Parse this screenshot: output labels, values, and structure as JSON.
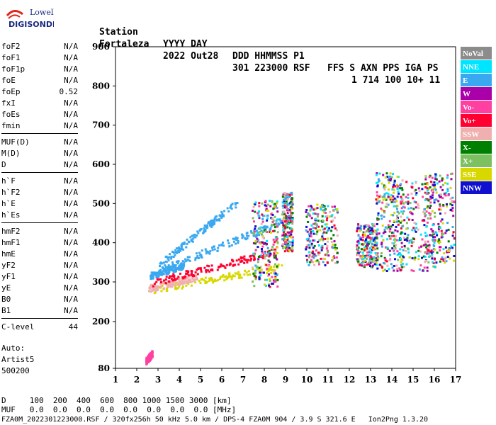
{
  "logo": {
    "line1": "Lowell",
    "line2": "DIGISONDE"
  },
  "header": {
    "row1": [
      "Station",
      "YYYY DAY",
      "DDD HHMMSS P1",
      "FFS S AXN PPS IGA PS"
    ],
    "row2": [
      "Fortaleza",
      "2022 Out28",
      "301 223000 RSF",
      "1 714 100 10+ 11"
    ]
  },
  "params": [
    {
      "name": "foF2",
      "value": "N/A"
    },
    {
      "name": "foF1",
      "value": "N/A"
    },
    {
      "name": "foF1p",
      "value": "N/A"
    },
    {
      "name": "foE",
      "value": "N/A"
    },
    {
      "name": "foEp",
      "value": "0.52"
    },
    {
      "name": "fxI",
      "value": "N/A"
    },
    {
      "name": "foEs",
      "value": "N/A"
    },
    {
      "name": "fmin",
      "value": "N/A"
    },
    {
      "name": "MUF(D)",
      "value": "N/A"
    },
    {
      "name": "M(D)",
      "value": "N/A"
    },
    {
      "name": "D",
      "value": "N/A"
    },
    {
      "name": "h`F",
      "value": "N/A"
    },
    {
      "name": "h`F2",
      "value": "N/A"
    },
    {
      "name": "h`E",
      "value": "N/A"
    },
    {
      "name": "h`Es",
      "value": "N/A"
    },
    {
      "name": "hmF2",
      "value": "N/A"
    },
    {
      "name": "hmF1",
      "value": "N/A"
    },
    {
      "name": "hmE",
      "value": "N/A"
    },
    {
      "name": "yF2",
      "value": "N/A"
    },
    {
      "name": "yF1",
      "value": "N/A"
    },
    {
      "name": "yE",
      "value": "N/A"
    },
    {
      "name": "B0",
      "value": "N/A"
    },
    {
      "name": "B1",
      "value": "N/A"
    },
    {
      "name": "C-level",
      "value": "44"
    }
  ],
  "auto": [
    "Auto:",
    "Artist5",
    "500200"
  ],
  "footer": {
    "d_row": "D     100  200  400  600  800 1000 1500 3000 [km]",
    "muf_row": "MUF   0.0  0.0  0.0  0.0  0.0  0.0  0.0  0.0 [MHz]",
    "file_row": "FZA0M_2022301223000.RSF / 320fx256h 50 kHz 5.0 km / DPS-4 FZA0M 904 / 3.9 S 321.6 E   Ion2Png 1.3.20"
  },
  "colors": {
    "NoVal": "#8c8c8c",
    "NNE": "#00e5ff",
    "E": "#3aa8f0",
    "W": "#aa00aa",
    "Vo-": "#ff40a0",
    "Vo+": "#ff0030",
    "SSW": "#f0b0b0",
    "X-": "#008000",
    "X+": "#7cc060",
    "SSE": "#d8d800",
    "NNW": "#1010d0"
  },
  "chart_data": {
    "type": "scatter",
    "title": "",
    "xlabel": "",
    "ylabel": "",
    "xlim": [
      1,
      17
    ],
    "ylim": [
      80,
      900
    ],
    "xticks": [
      "1",
      "2",
      "3",
      "4",
      "5",
      "6",
      "7",
      "8",
      "9",
      "10",
      "11",
      "12",
      "13",
      "14",
      "15",
      "16",
      "17"
    ],
    "yticks": [
      "80",
      "200",
      "300",
      "400",
      "500",
      "600",
      "700",
      "800",
      "900"
    ],
    "legend": [
      "NoVal",
      "NNE",
      "E",
      "W",
      "Vo-",
      "Vo+",
      "SSW",
      "X-",
      "X+",
      "SSE",
      "NNW"
    ],
    "legend_position": "right",
    "traces": [
      {
        "series": "E",
        "x": [
          3.0,
          6.7
        ],
        "y": [
          345,
          505
        ]
      },
      {
        "series": "E",
        "x": [
          3.0,
          9.2
        ],
        "y": [
          330,
          465
        ]
      },
      {
        "series": "E",
        "x": [
          2.6,
          4.2
        ],
        "y": [
          318,
          345
        ]
      },
      {
        "series": "SSE",
        "x": [
          2.7,
          8.8
        ],
        "y": [
          282,
          340
        ]
      },
      {
        "series": "SSW",
        "x": [
          2.5,
          4.8
        ],
        "y": [
          285,
          315
        ]
      },
      {
        "series": "Vo+",
        "x": [
          2.7,
          8.5
        ],
        "y": [
          300,
          380
        ]
      },
      {
        "series": "Vo-",
        "x": [
          2.4,
          2.7
        ],
        "y": [
          100,
          120
        ]
      }
    ],
    "clusters": [
      {
        "x": [
          7.4,
          8.6
        ],
        "y": [
          290,
          510
        ]
      },
      {
        "x": [
          8.8,
          9.3
        ],
        "y": [
          380,
          530
        ]
      },
      {
        "x": [
          9.9,
          11.4
        ],
        "y": [
          345,
          500
        ]
      },
      {
        "x": [
          12.3,
          13.3
        ],
        "y": [
          340,
          450
        ]
      },
      {
        "x": [
          13.2,
          14.5
        ],
        "y": [
          330,
          580
        ]
      },
      {
        "x": [
          14.0,
          16.0
        ],
        "y": [
          330,
          560
        ]
      },
      {
        "x": [
          15.5,
          17.0
        ],
        "y": [
          350,
          580
        ]
      }
    ]
  }
}
